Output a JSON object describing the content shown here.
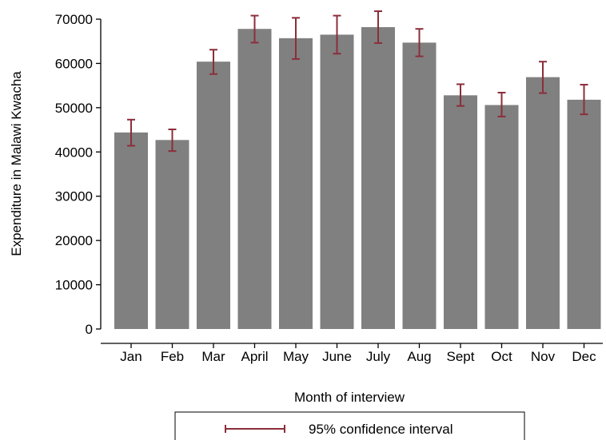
{
  "chart_data": {
    "type": "bar",
    "categories": [
      "Jan",
      "Feb",
      "Mar",
      "April",
      "May",
      "June",
      "July",
      "Aug",
      "Sept",
      "Oct",
      "Nov",
      "Dec"
    ],
    "values": [
      44400,
      42700,
      60400,
      67800,
      65700,
      66500,
      68200,
      64700,
      52800,
      50600,
      56900,
      51800
    ],
    "ci_low": [
      41400,
      40200,
      57600,
      64700,
      61000,
      62200,
      64600,
      61600,
      50400,
      48000,
      53300,
      48500
    ],
    "ci_high": [
      47300,
      45100,
      63100,
      70800,
      70300,
      70800,
      71800,
      67800,
      55300,
      53400,
      60400,
      55200
    ],
    "title": "",
    "xlabel": "Month of interview",
    "ylabel": "Expenditure in Malawi Kwacha",
    "ylim": [
      0,
      70000
    ],
    "yticks": [
      0,
      10000,
      20000,
      30000,
      40000,
      50000,
      60000,
      70000
    ],
    "grid": false,
    "legend": {
      "position": "bottom",
      "entries": [
        "95% confidence interval"
      ]
    },
    "colors": {
      "bar": "#808080",
      "ci": "#8b2e3a",
      "axis": "#000000"
    }
  }
}
